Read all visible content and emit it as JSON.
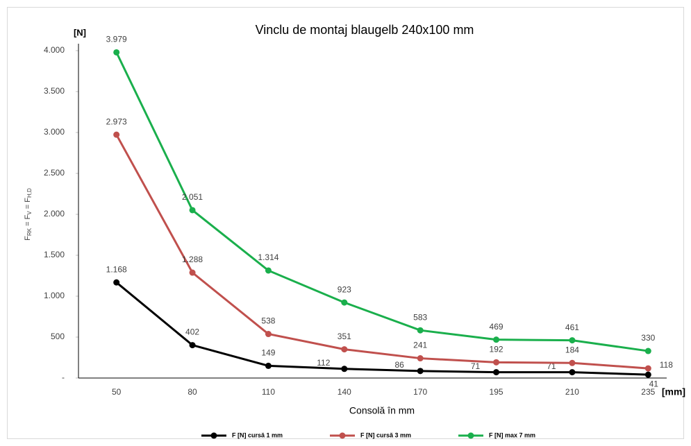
{
  "chart_data": {
    "type": "line",
    "title": "Vinclu de montaj blaugelb 240x100 mm",
    "y_unit": "[N]",
    "x_unit": "[mm]",
    "x_label": "Consolă în mm",
    "y_label_parts": [
      "F",
      "RK",
      " = F",
      "V",
      " = F",
      "H,D"
    ],
    "categories": [
      "50",
      "80",
      "110",
      "140",
      "170",
      "195",
      "210",
      "235"
    ],
    "ylim": [
      0,
      4000
    ],
    "yticks": [
      {
        "value": 0,
        "label": "-"
      },
      500,
      {
        "value": 1000,
        "label": "1.000"
      },
      {
        "value": 1500,
        "label": "1.500"
      },
      {
        "value": 2000,
        "label": "2.000"
      },
      {
        "value": 2500,
        "label": "2.500"
      },
      {
        "value": 3000,
        "label": "3.000"
      },
      {
        "value": 3500,
        "label": "3.500"
      },
      {
        "value": 4000,
        "label": "4.000"
      }
    ],
    "series": [
      {
        "name": "F [N] cursă 1 mm",
        "color": "#000000",
        "values": [
          1168,
          402,
          149,
          112,
          86,
          71,
          71,
          41
        ],
        "value_labels": [
          "1.168",
          "402",
          "149",
          "112",
          "86",
          "71",
          "71",
          "41"
        ]
      },
      {
        "name": "F [N] cursă 3 mm",
        "color": "#c0504d",
        "values": [
          2973,
          1288,
          538,
          351,
          241,
          192,
          184,
          118
        ],
        "value_labels": [
          "2.973",
          "1.288",
          "538",
          "351",
          "241",
          "192",
          "184",
          "118"
        ]
      },
      {
        "name": "F [N] max 7 mm",
        "color": "#1aaf4c",
        "values": [
          3979,
          2051,
          1314,
          923,
          583,
          469,
          461,
          330
        ],
        "value_labels": [
          "3.979",
          "2.051",
          "1.314",
          "923",
          "583",
          "469",
          "461",
          "330"
        ]
      }
    ]
  }
}
